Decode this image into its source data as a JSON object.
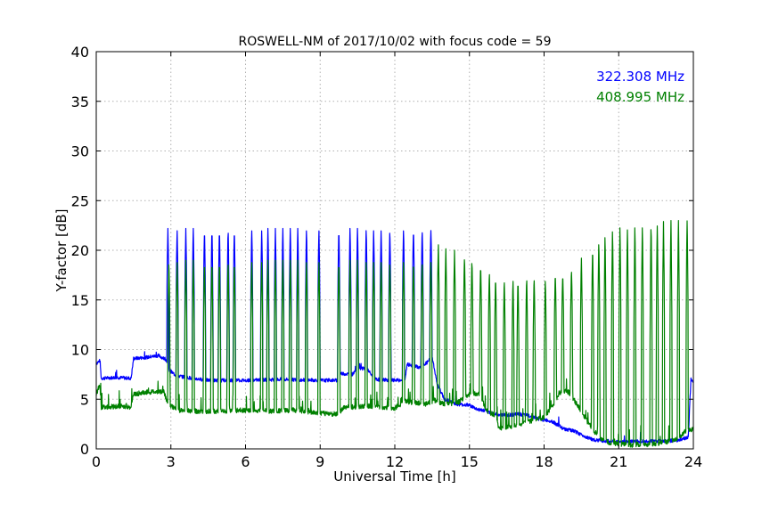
{
  "chart_data": {
    "type": "line",
    "title": "ROSWELL-NM of 2017/10/02 with focus code = 59",
    "xlabel": "Universal Time [h]",
    "ylabel": "Y-factor [dB]",
    "xlim": [
      0,
      24
    ],
    "ylim": [
      0,
      40
    ],
    "xticks": [
      0,
      3,
      6,
      9,
      12,
      15,
      18,
      21,
      24
    ],
    "yticks": [
      0,
      5,
      10,
      15,
      20,
      25,
      30,
      35,
      40
    ],
    "grid": true,
    "legend_position": "top-right",
    "series": [
      {
        "name": "322.308 MHz",
        "color": "#0000ff",
        "baseline": [
          [
            0,
            8.6
          ],
          [
            0.15,
            8.9
          ],
          [
            0.2,
            7.1
          ],
          [
            0.8,
            7.2
          ],
          [
            1.4,
            7.1
          ],
          [
            1.5,
            9.1
          ],
          [
            2.0,
            9.2
          ],
          [
            2.5,
            9.4
          ],
          [
            2.8,
            9.0
          ],
          [
            2.9,
            8.0
          ],
          [
            3.2,
            7.4
          ],
          [
            3.6,
            7.2
          ],
          [
            4.5,
            6.9
          ],
          [
            6.0,
            6.9
          ],
          [
            7.5,
            7.0
          ],
          [
            9.0,
            6.9
          ],
          [
            9.7,
            6.9
          ],
          [
            9.8,
            7.6
          ],
          [
            10.3,
            7.5
          ],
          [
            10.5,
            8.2
          ],
          [
            10.9,
            8.0
          ],
          [
            11.2,
            7.0
          ],
          [
            12.0,
            6.9
          ],
          [
            12.4,
            6.9
          ],
          [
            12.5,
            8.5
          ],
          [
            13.0,
            8.2
          ],
          [
            13.3,
            8.7
          ],
          [
            13.5,
            9.3
          ],
          [
            13.7,
            6.5
          ],
          [
            14.0,
            5.0
          ],
          [
            14.5,
            4.5
          ],
          [
            15.0,
            4.4
          ],
          [
            15.3,
            4.0
          ],
          [
            15.7,
            3.8
          ],
          [
            16.0,
            3.5
          ],
          [
            16.5,
            3.4
          ],
          [
            17.0,
            3.5
          ],
          [
            17.5,
            3.3
          ],
          [
            17.8,
            3.0
          ],
          [
            18.3,
            2.8
          ],
          [
            18.8,
            2.0
          ],
          [
            19.2,
            1.8
          ],
          [
            19.6,
            1.3
          ],
          [
            20.0,
            0.9
          ],
          [
            20.5,
            0.8
          ],
          [
            21.0,
            0.7
          ],
          [
            22.0,
            0.8
          ],
          [
            23.0,
            0.8
          ],
          [
            23.5,
            0.9
          ],
          [
            23.8,
            1.2
          ],
          [
            23.9,
            7.0
          ],
          [
            24.0,
            6.8
          ]
        ],
        "spike_peak": 22.2,
        "spikes": [
          2.88,
          3.25,
          3.6,
          3.9,
          4.35,
          4.65,
          4.95,
          5.3,
          5.55,
          6.25,
          6.65,
          6.9,
          7.2,
          7.5,
          7.8,
          8.1,
          8.45,
          8.95,
          9.75,
          10.2,
          10.5,
          10.85,
          11.15,
          11.45,
          11.8,
          12.35,
          12.75,
          13.1,
          13.45
        ]
      },
      {
        "name": "408.995 MHz",
        "color": "#008000",
        "baseline": [
          [
            0,
            5.5
          ],
          [
            0.15,
            6.5
          ],
          [
            0.2,
            4.2
          ],
          [
            1.0,
            4.3
          ],
          [
            1.4,
            4.2
          ],
          [
            1.5,
            5.5
          ],
          [
            2.0,
            5.7
          ],
          [
            2.7,
            5.8
          ],
          [
            2.9,
            4.5
          ],
          [
            3.3,
            3.9
          ],
          [
            4.0,
            3.8
          ],
          [
            5.0,
            3.8
          ],
          [
            6.0,
            3.9
          ],
          [
            7.0,
            3.8
          ],
          [
            8.0,
            3.9
          ],
          [
            9.0,
            3.6
          ],
          [
            9.7,
            3.5
          ],
          [
            10.0,
            4.2
          ],
          [
            11.0,
            4.3
          ],
          [
            12.0,
            4.1
          ],
          [
            12.4,
            4.8
          ],
          [
            13.2,
            4.5
          ],
          [
            13.6,
            4.9
          ],
          [
            14.0,
            4.5
          ],
          [
            14.5,
            4.6
          ],
          [
            15.0,
            5.5
          ],
          [
            15.4,
            5.6
          ],
          [
            15.7,
            3.8
          ],
          [
            16.0,
            3.4
          ],
          [
            16.2,
            2.0
          ],
          [
            16.8,
            2.3
          ],
          [
            17.5,
            2.8
          ],
          [
            18.0,
            3.2
          ],
          [
            18.4,
            4.5
          ],
          [
            18.7,
            5.9
          ],
          [
            19.0,
            5.7
          ],
          [
            19.4,
            4.2
          ],
          [
            19.8,
            2.5
          ],
          [
            20.2,
            1.2
          ],
          [
            20.6,
            0.6
          ],
          [
            21.5,
            0.4
          ],
          [
            22.5,
            0.5
          ],
          [
            23.3,
            0.9
          ],
          [
            23.7,
            1.8
          ],
          [
            24.0,
            2.0
          ]
        ],
        "spikes": [
          [
            2.92,
            19.0
          ],
          [
            3.25,
            19.0
          ],
          [
            3.6,
            19.0
          ],
          [
            3.9,
            19.0
          ],
          [
            4.35,
            19.0
          ],
          [
            4.65,
            19.0
          ],
          [
            4.95,
            19.0
          ],
          [
            5.3,
            19.0
          ],
          [
            5.55,
            19.0
          ],
          [
            6.25,
            19.0
          ],
          [
            6.65,
            19.0
          ],
          [
            6.9,
            19.0
          ],
          [
            7.2,
            19.0
          ],
          [
            7.5,
            19.0
          ],
          [
            7.8,
            19.0
          ],
          [
            8.1,
            19.0
          ],
          [
            8.45,
            19.0
          ],
          [
            8.95,
            19.0
          ],
          [
            9.75,
            19.0
          ],
          [
            10.2,
            19.0
          ],
          [
            10.5,
            19.0
          ],
          [
            10.85,
            19.0
          ],
          [
            11.15,
            19.0
          ],
          [
            11.45,
            19.0
          ],
          [
            11.8,
            19.0
          ],
          [
            12.35,
            19.0
          ],
          [
            12.75,
            19.0
          ],
          [
            13.1,
            19.0
          ],
          [
            13.45,
            19.0
          ],
          [
            13.75,
            20.8
          ],
          [
            14.05,
            20.4
          ],
          [
            14.4,
            20.0
          ],
          [
            14.8,
            19.5
          ],
          [
            15.1,
            19.1
          ],
          [
            15.45,
            18.6
          ],
          [
            15.8,
            18.0
          ],
          [
            16.05,
            17.4
          ],
          [
            16.4,
            17.2
          ],
          [
            16.75,
            17.1
          ],
          [
            16.95,
            17.1
          ],
          [
            17.3,
            17.4
          ],
          [
            17.6,
            17.4
          ],
          [
            18.05,
            17.1
          ],
          [
            18.45,
            17.8
          ],
          [
            18.75,
            17.7
          ],
          [
            19.1,
            18.2
          ],
          [
            19.5,
            19.2
          ],
          [
            19.95,
            20.4
          ],
          [
            20.2,
            21.2
          ],
          [
            20.45,
            21.6
          ],
          [
            20.75,
            22.2
          ],
          [
            21.05,
            22.6
          ],
          [
            21.35,
            22.4
          ],
          [
            21.65,
            22.6
          ],
          [
            21.95,
            22.6
          ],
          [
            22.3,
            22.8
          ],
          [
            22.55,
            22.8
          ],
          [
            22.8,
            22.9
          ],
          [
            23.1,
            23.0
          ],
          [
            23.4,
            23.0
          ],
          [
            23.75,
            23.3
          ]
        ]
      }
    ]
  }
}
